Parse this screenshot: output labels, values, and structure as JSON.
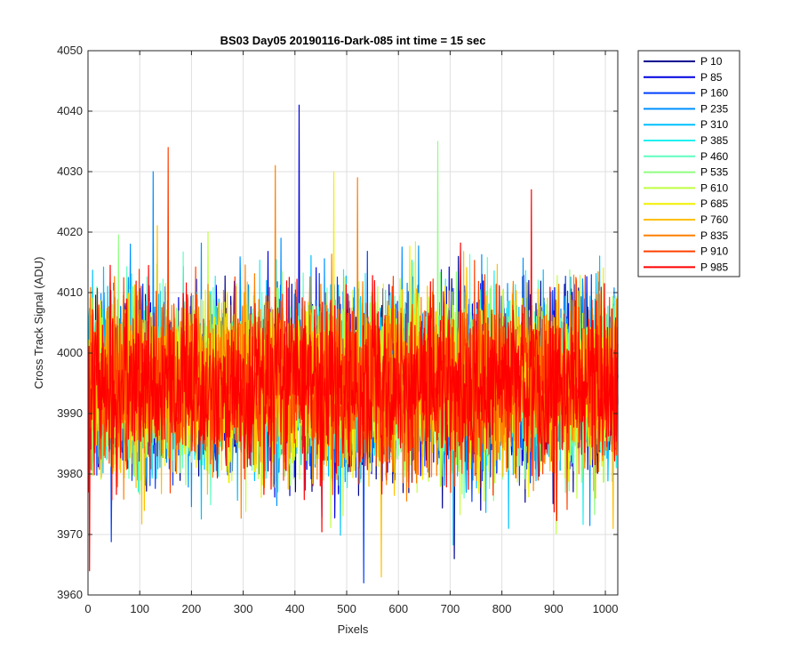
{
  "chart_data": {
    "type": "line",
    "title": "BS03 Day05 20190116-Dark-085 int time = 15 sec",
    "xlabel": "Pixels",
    "ylabel": "Cross Track Signal (ADU)",
    "xlim": [
      0,
      1024
    ],
    "ylim": [
      3960,
      4050
    ],
    "xticks": [
      0,
      100,
      200,
      300,
      400,
      500,
      600,
      700,
      800,
      900,
      1000
    ],
    "yticks": [
      3960,
      3970,
      3980,
      3990,
      4000,
      4010,
      4020,
      4030,
      4040,
      4050
    ],
    "grid": true,
    "legend_position": "outside-right",
    "noise_profile": {
      "mean": 3995,
      "std": 7,
      "min": 3962,
      "max": 4041
    },
    "series": [
      {
        "name": "P 10",
        "color": "#00008F"
      },
      {
        "name": "P 85",
        "color": "#0000E0"
      },
      {
        "name": "P 160",
        "color": "#0040FF"
      },
      {
        "name": "P 235",
        "color": "#0090FF"
      },
      {
        "name": "P 310",
        "color": "#00C0FF"
      },
      {
        "name": "P 385",
        "color": "#20F0F0"
      },
      {
        "name": "P 460",
        "color": "#60FFC0"
      },
      {
        "name": "P 535",
        "color": "#90FF80"
      },
      {
        "name": "P 610",
        "color": "#C0FF40"
      },
      {
        "name": "P 685",
        "color": "#F0F000"
      },
      {
        "name": "P 760",
        "color": "#FFC000"
      },
      {
        "name": "P 835",
        "color": "#FF8000"
      },
      {
        "name": "P 910",
        "color": "#FF4000"
      },
      {
        "name": "P 985",
        "color": "#FF0000"
      }
    ],
    "spikes": [
      {
        "series": "P 85",
        "x": 408,
        "y": 4041
      },
      {
        "series": "P 910",
        "x": 155,
        "y": 4034
      },
      {
        "series": "P 535",
        "x": 676,
        "y": 4035
      },
      {
        "series": "P 835",
        "x": 362,
        "y": 4031
      },
      {
        "series": "P 235",
        "x": 126,
        "y": 4030
      },
      {
        "series": "P 685",
        "x": 475,
        "y": 4030
      },
      {
        "series": "P 835",
        "x": 521,
        "y": 4029
      },
      {
        "series": "P 985",
        "x": 857,
        "y": 4027
      },
      {
        "series": "P 160",
        "x": 533,
        "y": 3962
      },
      {
        "series": "P 760",
        "x": 567,
        "y": 3963
      },
      {
        "series": "P 10",
        "x": 708,
        "y": 3966
      },
      {
        "series": "P 985",
        "x": 3,
        "y": 3964
      }
    ]
  }
}
